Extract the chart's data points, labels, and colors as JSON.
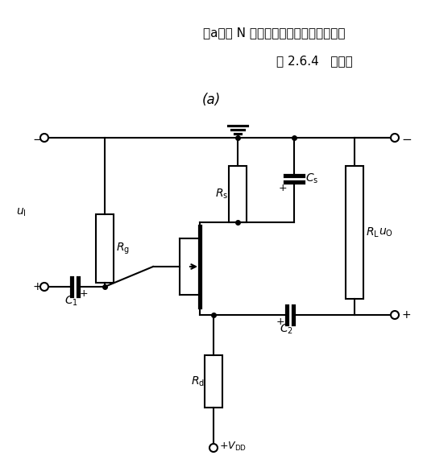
{
  "title": "(a)",
  "caption_line1": "图 2.6.4   自给偏",
  "caption_line2": "（a）由 N 沟道结型场效应管组成的电路",
  "bg_color": "#ffffff",
  "line_color": "#000000",
  "lw": 1.5
}
